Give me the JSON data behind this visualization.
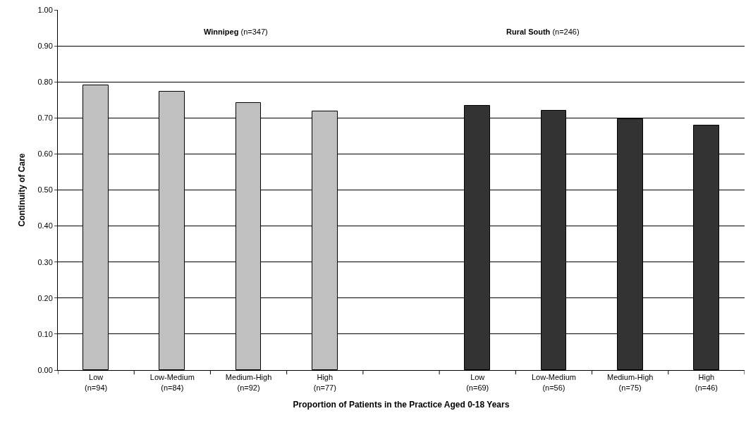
{
  "chart_data": {
    "type": "bar",
    "xlabel": "Proportion of Patients in the Practice Aged 0-18 Years",
    "ylabel": "Continuity of Care",
    "categories": [
      "Low\n(n=94)",
      "Low-Medium\n(n=84)",
      "Medium-High\n(n=92)",
      "High\n(n=77)",
      null,
      "Low\n(n=69)",
      "Low-Medium\n(n=56)",
      "Medium-High\n(n=75)",
      "High\n(n=46)"
    ],
    "values": [
      0.79,
      0.773,
      0.741,
      0.719,
      null,
      0.733,
      0.72,
      0.697,
      0.679
    ],
    "colors": [
      "#c0c0c0",
      "#c0c0c0",
      "#c0c0c0",
      "#c0c0c0",
      "#c0c0c0",
      "#333333",
      "#333333",
      "#333333",
      "#333333"
    ],
    "ylim": [
      0,
      1
    ],
    "yticks": [
      {
        "value": 0,
        "label": "0.00"
      },
      {
        "value": 0.1,
        "label": "0.10"
      },
      {
        "value": 0.2,
        "label": "0.20"
      },
      {
        "value": 0.3,
        "label": "0.30"
      },
      {
        "value": 0.4,
        "label": "0.40"
      },
      {
        "value": 0.5,
        "label": "0.50"
      },
      {
        "value": 0.6,
        "label": "0.60"
      },
      {
        "value": 0.7,
        "label": "0.70"
      },
      {
        "value": 0.8,
        "label": "0.80"
      },
      {
        "value": 0.9,
        "label": "0.90"
      },
      {
        "value": 1,
        "label": "1.00"
      }
    ],
    "grid": "y",
    "annotations": [
      "Winnipeg (n=347)",
      "Rural South (n=246)"
    ]
  }
}
